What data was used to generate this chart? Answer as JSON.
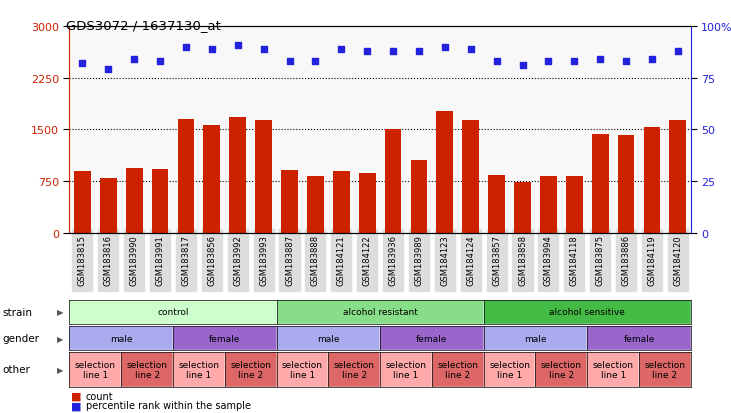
{
  "title": "GDS3072 / 1637130_at",
  "samples": [
    "GSM183815",
    "GSM183816",
    "GSM183990",
    "GSM183991",
    "GSM183817",
    "GSM183856",
    "GSM183992",
    "GSM183993",
    "GSM183887",
    "GSM183888",
    "GSM184121",
    "GSM184122",
    "GSM183936",
    "GSM183989",
    "GSM184123",
    "GSM184124",
    "GSM183857",
    "GSM183858",
    "GSM183994",
    "GSM184118",
    "GSM183875",
    "GSM183886",
    "GSM184119",
    "GSM184120"
  ],
  "counts": [
    900,
    790,
    940,
    920,
    1650,
    1560,
    1680,
    1640,
    910,
    820,
    900,
    870,
    1500,
    1050,
    1760,
    1640,
    845,
    745,
    820,
    820,
    1440,
    1420,
    1540,
    1635
  ],
  "percentile_ranks": [
    82,
    79,
    84,
    83,
    90,
    89,
    91,
    89,
    83,
    83,
    89,
    88,
    88,
    88,
    90,
    89,
    83,
    81,
    83,
    83,
    84,
    83,
    84,
    88
  ],
  "bar_color": "#cc2200",
  "dot_color": "#2222dd",
  "ylim_left": [
    0,
    3000
  ],
  "ylim_right": [
    0,
    100
  ],
  "yticks_left": [
    0,
    750,
    1500,
    2250,
    3000
  ],
  "yticks_right": [
    0,
    25,
    50,
    75,
    100
  ],
  "hlines": [
    750,
    1500,
    2250
  ],
  "bg_color": "#f8f8f8",
  "strain_groups": [
    {
      "label": "control",
      "start": 0,
      "end": 8,
      "color": "#ccffcc"
    },
    {
      "label": "alcohol resistant",
      "start": 8,
      "end": 16,
      "color": "#88dd88"
    },
    {
      "label": "alcohol sensitive",
      "start": 16,
      "end": 24,
      "color": "#44bb44"
    }
  ],
  "gender_groups": [
    {
      "label": "male",
      "start": 0,
      "end": 4,
      "color": "#aaaaee"
    },
    {
      "label": "female",
      "start": 4,
      "end": 8,
      "color": "#9966cc"
    },
    {
      "label": "male",
      "start": 8,
      "end": 12,
      "color": "#aaaaee"
    },
    {
      "label": "female",
      "start": 12,
      "end": 16,
      "color": "#9966cc"
    },
    {
      "label": "male",
      "start": 16,
      "end": 20,
      "color": "#aaaaee"
    },
    {
      "label": "female",
      "start": 20,
      "end": 24,
      "color": "#9966cc"
    }
  ],
  "other_groups": [
    {
      "label": "selection\nline 1",
      "start": 0,
      "end": 2,
      "color": "#ffaaaa"
    },
    {
      "label": "selection\nline 2",
      "start": 2,
      "end": 4,
      "color": "#dd6666"
    },
    {
      "label": "selection\nline 1",
      "start": 4,
      "end": 6,
      "color": "#ffaaaa"
    },
    {
      "label": "selection\nline 2",
      "start": 6,
      "end": 8,
      "color": "#dd6666"
    },
    {
      "label": "selection\nline 1",
      "start": 8,
      "end": 10,
      "color": "#ffaaaa"
    },
    {
      "label": "selection\nline 2",
      "start": 10,
      "end": 12,
      "color": "#dd6666"
    },
    {
      "label": "selection\nline 1",
      "start": 12,
      "end": 14,
      "color": "#ffaaaa"
    },
    {
      "label": "selection\nline 2",
      "start": 14,
      "end": 16,
      "color": "#dd6666"
    },
    {
      "label": "selection\nline 1",
      "start": 16,
      "end": 18,
      "color": "#ffaaaa"
    },
    {
      "label": "selection\nline 2",
      "start": 18,
      "end": 20,
      "color": "#dd6666"
    },
    {
      "label": "selection\nline 1",
      "start": 20,
      "end": 22,
      "color": "#ffaaaa"
    },
    {
      "label": "selection\nline 2",
      "start": 22,
      "end": 24,
      "color": "#dd6666"
    }
  ],
  "legend_count_label": "count",
  "legend_pct_label": "percentile rank within the sample",
  "xtick_bg": "#dddddd"
}
